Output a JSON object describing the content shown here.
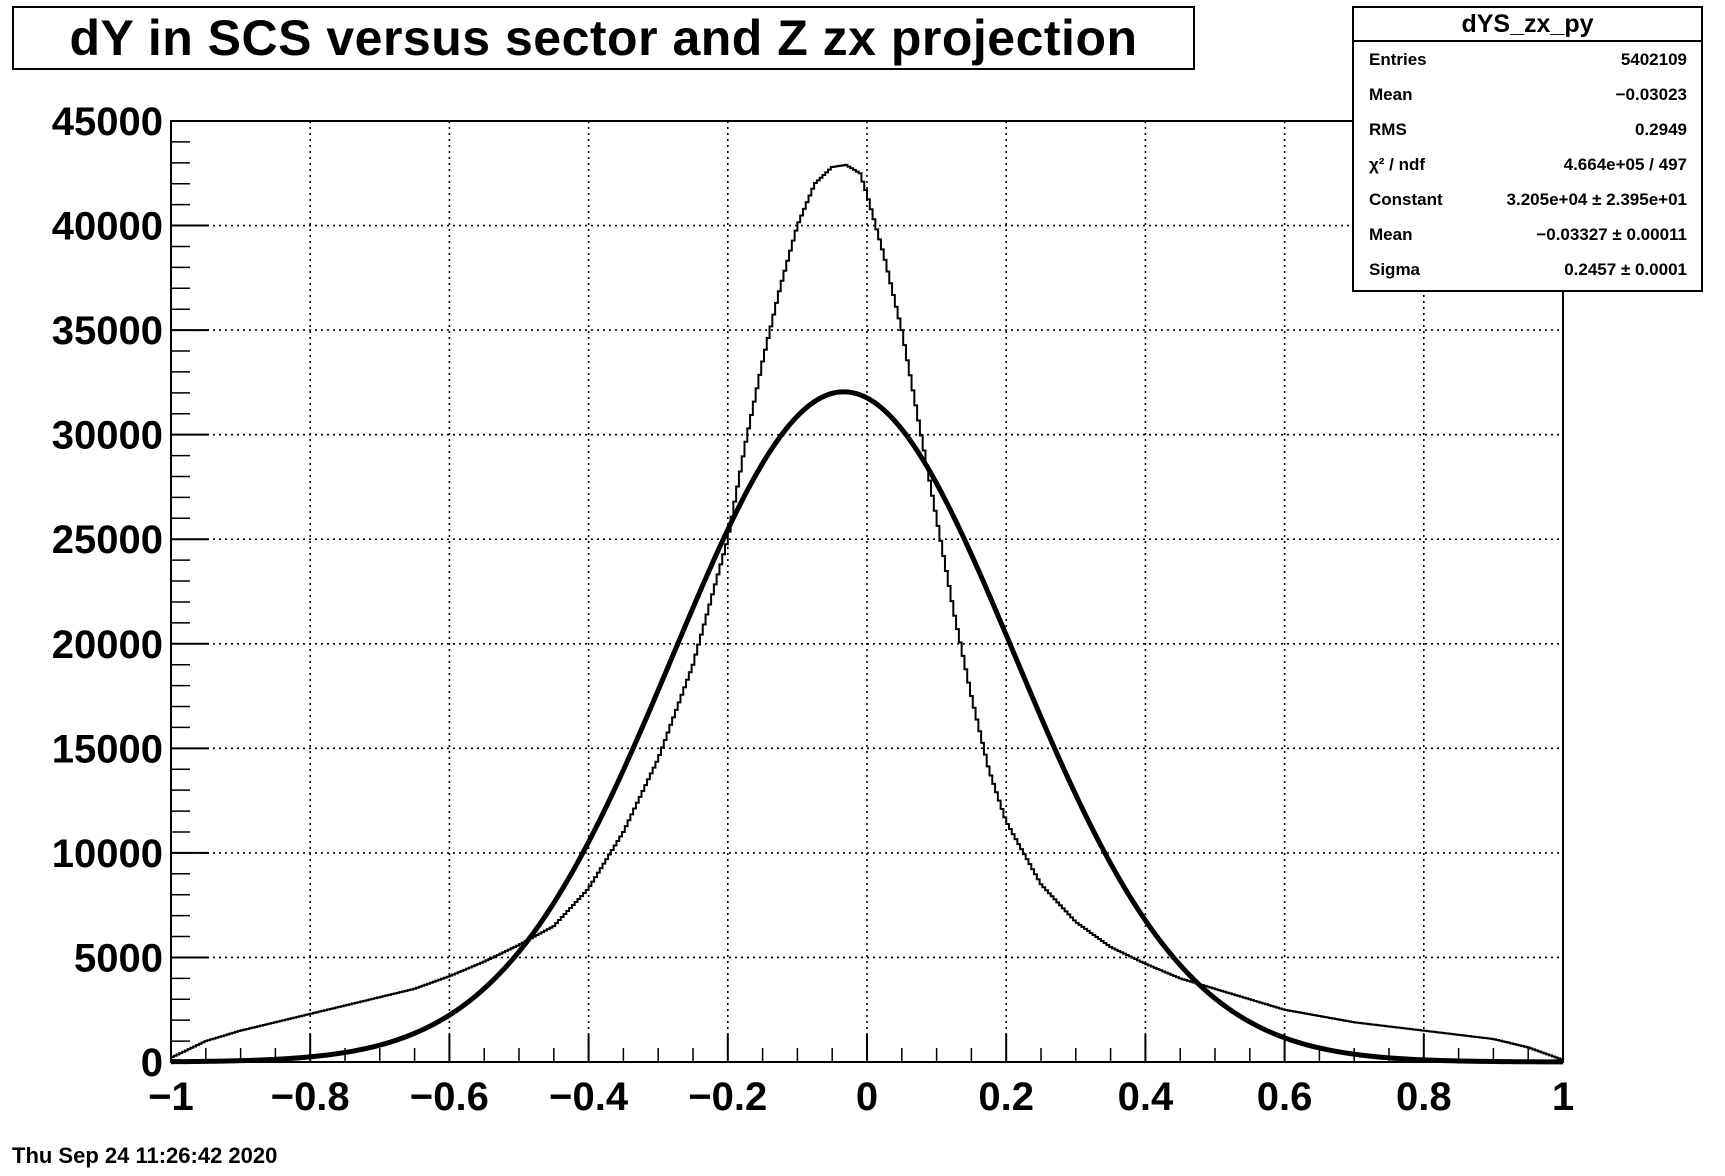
{
  "chart_data": {
    "type": "line",
    "title": "dY in SCS versus sector and Z zx projection",
    "xlim": [
      -1,
      1
    ],
    "ylim": [
      0,
      45000
    ],
    "x_tick_labels": [
      "−1",
      "−0.8",
      "−0.6",
      "−0.4",
      "−0.2",
      "0",
      "0.2",
      "0.4",
      "0.6",
      "0.8",
      "1"
    ],
    "x_tick_values": [
      -1,
      -0.8,
      -0.6,
      -0.4,
      -0.2,
      0,
      0.2,
      0.4,
      0.6,
      0.8,
      1
    ],
    "y_tick_labels": [
      "0",
      "5000",
      "10000",
      "15000",
      "20000",
      "25000",
      "30000",
      "35000",
      "40000",
      "45000"
    ],
    "y_tick_values": [
      0,
      5000,
      10000,
      15000,
      20000,
      25000,
      30000,
      35000,
      40000,
      45000
    ],
    "grid": true,
    "series": [
      {
        "kind": "histogram",
        "x": [
          -1.0,
          -0.95,
          -0.9,
          -0.85,
          -0.8,
          -0.75,
          -0.7,
          -0.65,
          -0.6,
          -0.55,
          -0.5,
          -0.45,
          -0.4,
          -0.35,
          -0.3,
          -0.25,
          -0.2,
          -0.175,
          -0.15,
          -0.125,
          -0.1,
          -0.075,
          -0.05,
          -0.03,
          -0.01,
          0.0,
          0.025,
          0.05,
          0.075,
          0.1,
          0.125,
          0.15,
          0.175,
          0.2,
          0.25,
          0.3,
          0.35,
          0.4,
          0.45,
          0.5,
          0.55,
          0.6,
          0.65,
          0.7,
          0.75,
          0.8,
          0.85,
          0.9,
          0.95,
          1.0
        ],
        "y": [
          200,
          1000,
          1500,
          1900,
          2300,
          2700,
          3100,
          3500,
          4100,
          4800,
          5600,
          6500,
          8300,
          11000,
          14500,
          19000,
          25000,
          29500,
          33500,
          37000,
          40000,
          42000,
          42800,
          42900,
          42500,
          41500,
          38500,
          35000,
          30500,
          26000,
          21500,
          17500,
          14000,
          11500,
          8500,
          6700,
          5500,
          4700,
          4000,
          3500,
          3000,
          2500,
          2200,
          1900,
          1700,
          1500,
          1300,
          1100,
          700,
          100
        ]
      },
      {
        "kind": "fit",
        "function": "gaus",
        "constant": 32050,
        "mean": -0.03327,
        "sigma": 0.2457
      }
    ]
  },
  "stats": {
    "name": "dYS_zx_py",
    "rows": [
      {
        "label": "Entries",
        "value": "5402109"
      },
      {
        "label": "Mean",
        "value": "−0.03023"
      },
      {
        "label": "RMS",
        "value": "0.2949"
      },
      {
        "label": "χ² / ndf",
        "value": "4.664e+05 / 497"
      },
      {
        "label": "Constant",
        "value": "3.205e+04 ± 2.395e+01"
      },
      {
        "label": "Mean",
        "value": "−0.03327 ± 0.00011"
      },
      {
        "label": "Sigma",
        "value": "0.2457 ± 0.0001"
      }
    ]
  },
  "timestamp": "Thu Sep 24 11:26:42 2020"
}
